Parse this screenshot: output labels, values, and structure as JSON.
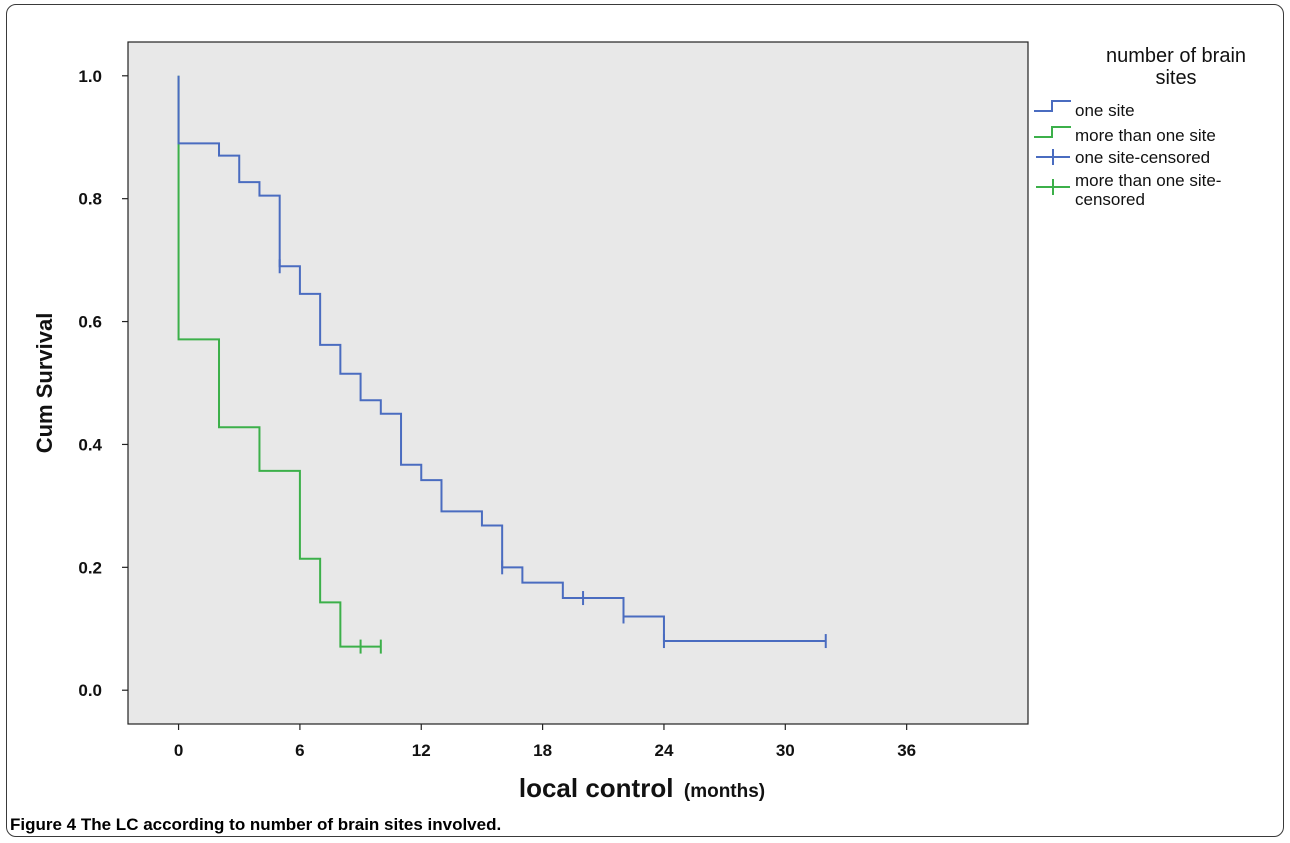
{
  "caption": {
    "label": "Figure 4",
    "text": "The LC according to number of brain sites involved."
  },
  "chart_data": {
    "type": "line",
    "step": true,
    "xlabel_main": "local control",
    "xlabel_units": "(months)",
    "ylabel": "Cum Survival",
    "xlim": [
      -2.5,
      42
    ],
    "ylim": [
      -0.055,
      1.055
    ],
    "x_ticks": [
      0,
      6,
      12,
      18,
      24,
      30,
      36
    ],
    "y_ticks": [
      0.0,
      0.2,
      0.4,
      0.6,
      0.8,
      1.0
    ],
    "y_tick_labels": [
      "0.0",
      "0.2",
      "0.4",
      "0.6",
      "0.8",
      "1.0"
    ],
    "grid": false,
    "plot_background": "#e8e8e8",
    "legend": {
      "title_line1": "number of brain",
      "title_line2": "sites",
      "placement": "right",
      "entries": [
        {
          "label": "one site",
          "kind": "line",
          "color": "#4a6cc0"
        },
        {
          "label": "more than one site",
          "kind": "line",
          "color": "#3cb04a"
        },
        {
          "label": "one site-censored",
          "kind": "censor",
          "color": "#4a6cc0"
        },
        {
          "label_line1": "more than one site-",
          "label_line2": "censored",
          "kind": "censor",
          "color": "#3cb04a"
        }
      ]
    },
    "series": [
      {
        "name": "one site",
        "color": "#4a6cc0",
        "steps": [
          [
            0,
            1.0
          ],
          [
            0,
            0.89
          ],
          [
            2,
            0.87
          ],
          [
            3,
            0.827
          ],
          [
            4,
            0.805
          ],
          [
            5,
            0.69
          ],
          [
            6,
            0.645
          ],
          [
            7,
            0.562
          ],
          [
            8,
            0.515
          ],
          [
            9,
            0.472
          ],
          [
            10,
            0.45
          ],
          [
            11,
            0.367
          ],
          [
            12,
            0.342
          ],
          [
            13,
            0.291
          ],
          [
            15,
            0.268
          ],
          [
            16,
            0.2
          ],
          [
            17,
            0.175
          ],
          [
            19,
            0.15
          ],
          [
            22,
            0.12
          ],
          [
            24,
            0.08
          ],
          [
            32,
            0.08
          ]
        ],
        "censored": [
          [
            5,
            0.69
          ],
          [
            16,
            0.2
          ],
          [
            20,
            0.15
          ],
          [
            22,
            0.12
          ],
          [
            24,
            0.08
          ],
          [
            32,
            0.08
          ]
        ]
      },
      {
        "name": "more than one site",
        "color": "#3cb04a",
        "steps": [
          [
            0,
            1.0
          ],
          [
            0,
            0.571
          ],
          [
            2,
            0.428
          ],
          [
            4,
            0.357
          ],
          [
            6,
            0.214
          ],
          [
            7,
            0.143
          ],
          [
            8,
            0.071
          ],
          [
            10,
            0.071
          ]
        ],
        "censored": [
          [
            9,
            0.071
          ],
          [
            10,
            0.071
          ]
        ]
      }
    ]
  }
}
